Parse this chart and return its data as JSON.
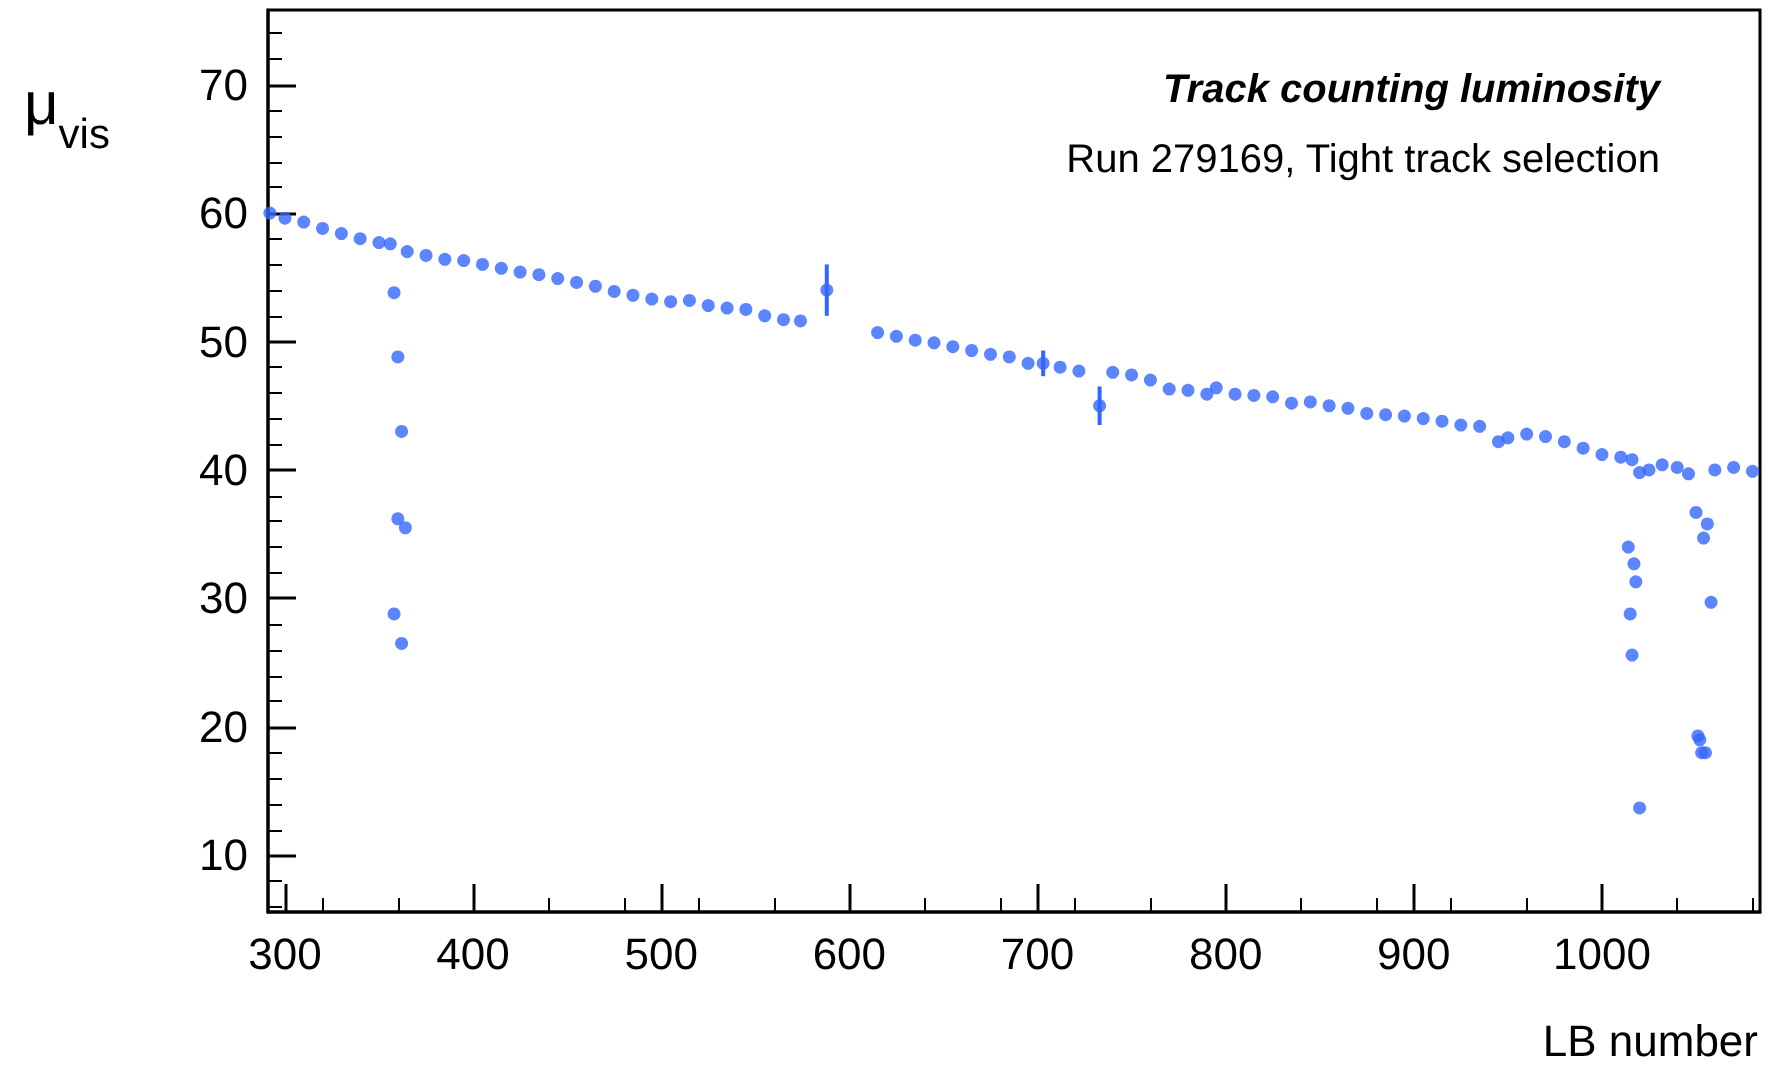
{
  "chart_data": {
    "type": "scatter",
    "title": "Track counting luminosity",
    "subtitle": "Run 279169, Tight track selection",
    "xlabel": "LB number",
    "ylabel": "μ$_{vis}$",
    "xlim": [
      291,
      1084
    ],
    "xticks": [
      300,
      400,
      500,
      600,
      700,
      800,
      900,
      1000
    ],
    "ylim": [
      5.6,
      75.8
    ],
    "yticks": [
      10,
      20,
      30,
      40,
      50,
      60,
      70
    ],
    "grid": false,
    "marker": "circle",
    "series": [
      {
        "color": "#3366ff",
        "x": [
          292,
          300,
          310,
          320,
          330,
          340,
          350,
          356,
          358,
          360,
          362,
          360,
          364,
          358,
          362,
          365,
          375,
          385,
          395,
          405,
          415,
          425,
          435,
          445,
          455,
          465,
          475,
          485,
          495,
          505,
          515,
          525,
          535,
          545,
          555,
          565,
          574,
          588,
          615,
          625,
          635,
          645,
          655,
          665,
          675,
          685,
          695,
          703,
          712,
          722,
          733,
          740,
          750,
          760,
          770,
          780,
          790,
          795,
          805,
          815,
          825,
          835,
          845,
          855,
          865,
          875,
          885,
          895,
          905,
          915,
          925,
          935,
          945,
          950,
          960,
          970,
          980,
          990,
          1000,
          1010,
          1014,
          1015,
          1016,
          1017,
          1018,
          1020,
          1016,
          1020,
          1025,
          1032,
          1040,
          1046,
          1050,
          1051,
          1052,
          1053,
          1054,
          1055,
          1056,
          1058,
          1060,
          1070,
          1080
        ],
        "values": [
          60.0,
          59.6,
          59.3,
          58.8,
          58.4,
          58.0,
          57.7,
          57.6,
          53.8,
          48.8,
          43.0,
          36.2,
          35.5,
          28.8,
          26.5,
          57.0,
          56.7,
          56.4,
          56.3,
          56.0,
          55.7,
          55.4,
          55.2,
          54.9,
          54.6,
          54.3,
          53.9,
          53.6,
          53.3,
          53.1,
          53.2,
          52.8,
          52.6,
          52.5,
          52.0,
          51.7,
          51.6,
          54.0,
          50.7,
          50.4,
          50.1,
          49.9,
          49.6,
          49.3,
          49.0,
          48.8,
          48.3,
          48.3,
          48.0,
          47.7,
          45.0,
          47.6,
          47.4,
          47.0,
          46.3,
          46.2,
          45.9,
          46.4,
          45.9,
          45.8,
          45.7,
          45.2,
          45.3,
          45.0,
          44.8,
          44.4,
          44.3,
          44.2,
          44.0,
          43.8,
          43.5,
          43.4,
          42.2,
          42.5,
          42.8,
          42.6,
          42.2,
          41.7,
          41.2,
          41.0,
          34.0,
          28.8,
          25.6,
          32.7,
          31.3,
          13.7,
          40.8,
          39.8,
          40.0,
          40.4,
          40.2,
          39.7,
          36.7,
          19.3,
          19.0,
          18.0,
          34.7,
          18.0,
          35.8,
          29.7,
          40.0,
          40.2,
          39.9
        ],
        "errors": [
          null,
          null,
          null,
          null,
          null,
          null,
          null,
          null,
          null,
          null,
          null,
          null,
          null,
          null,
          null,
          null,
          null,
          null,
          null,
          null,
          null,
          null,
          null,
          null,
          null,
          null,
          null,
          null,
          null,
          null,
          null,
          null,
          null,
          null,
          null,
          null,
          null,
          2.0,
          null,
          null,
          null,
          null,
          null,
          null,
          null,
          null,
          null,
          1.0,
          null,
          null,
          1.5,
          null,
          null,
          null,
          null,
          null,
          null,
          null,
          null,
          null,
          null,
          null,
          null,
          null,
          null,
          null,
          null,
          null,
          null,
          null,
          null,
          null,
          null,
          null,
          null,
          null,
          null,
          null,
          null,
          null,
          null,
          null,
          null,
          null,
          null,
          null,
          null,
          null,
          null,
          null,
          null,
          null,
          null,
          null,
          null,
          null,
          null,
          null,
          null,
          null,
          null,
          null,
          null
        ]
      }
    ]
  }
}
